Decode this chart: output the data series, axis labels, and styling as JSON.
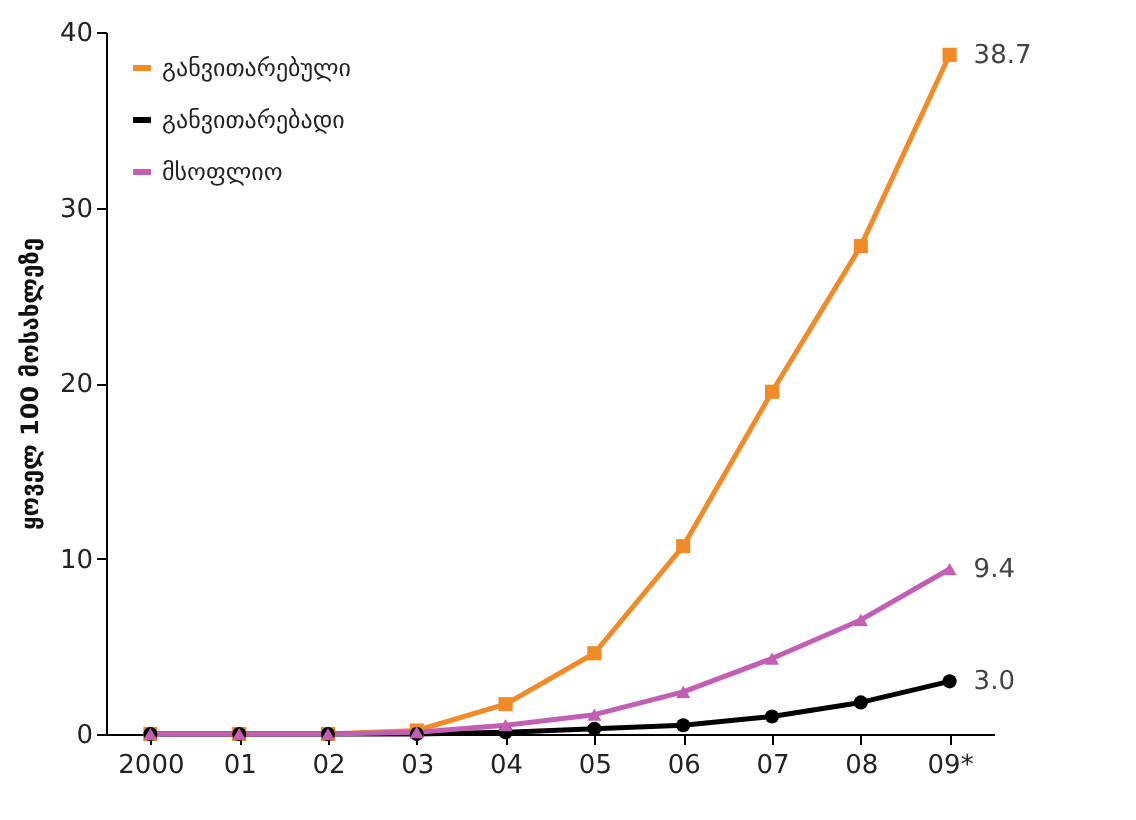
{
  "chart_data": {
    "type": "line",
    "ylabel": "ყოველ 100 მოსახლეზე",
    "categories": [
      "2000",
      "01",
      "02",
      "03",
      "04",
      "05",
      "06",
      "07",
      "08",
      "09*"
    ],
    "ylim": [
      0,
      40
    ],
    "yticks": [
      0,
      10,
      20,
      30,
      40
    ],
    "grid": false,
    "legend": "top left",
    "series": [
      {
        "name": "განვითარებული",
        "color": "#f28a26",
        "marker": "square",
        "values": [
          0,
          0,
          0,
          0.2,
          1.7,
          4.6,
          10.7,
          19.5,
          27.8,
          38.7
        ],
        "value_labels": [
          null,
          null,
          null,
          null,
          null,
          null,
          null,
          null,
          null,
          "38.7"
        ]
      },
      {
        "name": "განვითარებადი",
        "color": "#000000",
        "marker": "circle",
        "values": [
          0,
          0,
          0,
          0,
          0.1,
          0.3,
          0.5,
          1.0,
          1.8,
          3.0
        ],
        "value_labels": [
          null,
          null,
          null,
          null,
          null,
          null,
          null,
          null,
          null,
          "3.0"
        ]
      },
      {
        "name": "მსოფლიო",
        "color": "#c25fb5",
        "marker": "triangle",
        "values": [
          0,
          0,
          0,
          0.1,
          0.5,
          1.1,
          2.4,
          4.3,
          6.5,
          9.4
        ],
        "value_labels": [
          null,
          null,
          null,
          null,
          null,
          null,
          null,
          null,
          null,
          "9.4"
        ]
      }
    ]
  }
}
